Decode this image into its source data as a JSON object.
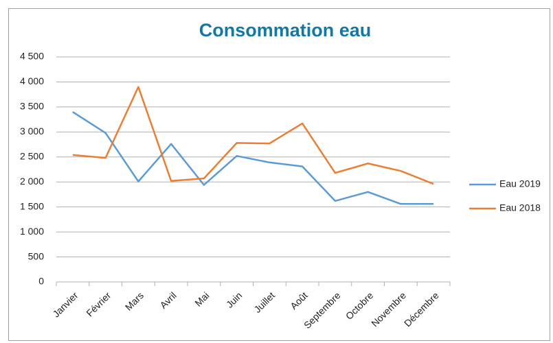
{
  "chart_data": {
    "type": "line",
    "title": "Consommation eau",
    "categories": [
      "Janvier",
      "Février",
      "Mars",
      "Avril",
      "Mai",
      "Juin",
      "Juillet",
      "Août",
      "Septembre",
      "Octobre",
      "Novembre",
      "Décembre"
    ],
    "series": [
      {
        "name": "Eau 2019",
        "color": "#5b9bd5",
        "values": [
          3400,
          2980,
          2010,
          2760,
          1940,
          2520,
          2390,
          2310,
          1620,
          1800,
          1560,
          1560
        ]
      },
      {
        "name": "Eau 2018",
        "color": "#ed7d31",
        "values": [
          2540,
          2480,
          3900,
          2020,
          2070,
          2780,
          2770,
          3170,
          2180,
          2370,
          2220,
          1960
        ]
      }
    ],
    "ylim": [
      0,
      4500
    ],
    "yticks": [
      0,
      500,
      {
        "value": 1000,
        "label": "1 000"
      },
      {
        "value": 1500,
        "label": "1 500"
      },
      {
        "value": 2000,
        "label": "2 000"
      },
      {
        "value": 2500,
        "label": "2 500"
      },
      {
        "value": 3000,
        "label": "3 000"
      },
      {
        "value": 3500,
        "label": "3 500"
      },
      {
        "value": 4000,
        "label": "4 000"
      },
      {
        "value": 4500,
        "label": "4 500"
      }
    ],
    "grid": true,
    "legend": "right"
  }
}
